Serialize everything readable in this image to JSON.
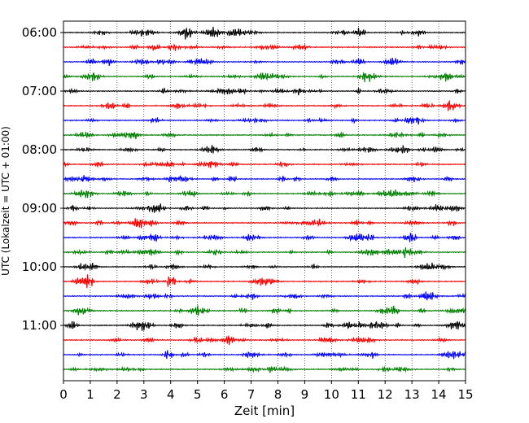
{
  "chart_data": {
    "type": "line",
    "title": "",
    "xlabel": "Zeit  [min]",
    "ylabel": "UTC (Lokalzeit = UTC + 01:00)",
    "xlim": [
      0,
      15
    ],
    "x_ticks": [
      "0",
      "1",
      "2",
      "3",
      "4",
      "5",
      "6",
      "7",
      "8",
      "9",
      "10",
      "11",
      "12",
      "13",
      "14",
      "15"
    ],
    "y_tick_labels": [
      "06:00",
      "07:00",
      "08:00",
      "09:00",
      "10:00",
      "11:00"
    ],
    "y_tick_positions": [
      0,
      4,
      8,
      12,
      16,
      20
    ],
    "vertical_grid": true,
    "trace_interval_minutes": 15,
    "trace_count": 24,
    "trace_colors": [
      "#000000",
      "#ff0000",
      "#0000ff",
      "#008000"
    ]
  }
}
